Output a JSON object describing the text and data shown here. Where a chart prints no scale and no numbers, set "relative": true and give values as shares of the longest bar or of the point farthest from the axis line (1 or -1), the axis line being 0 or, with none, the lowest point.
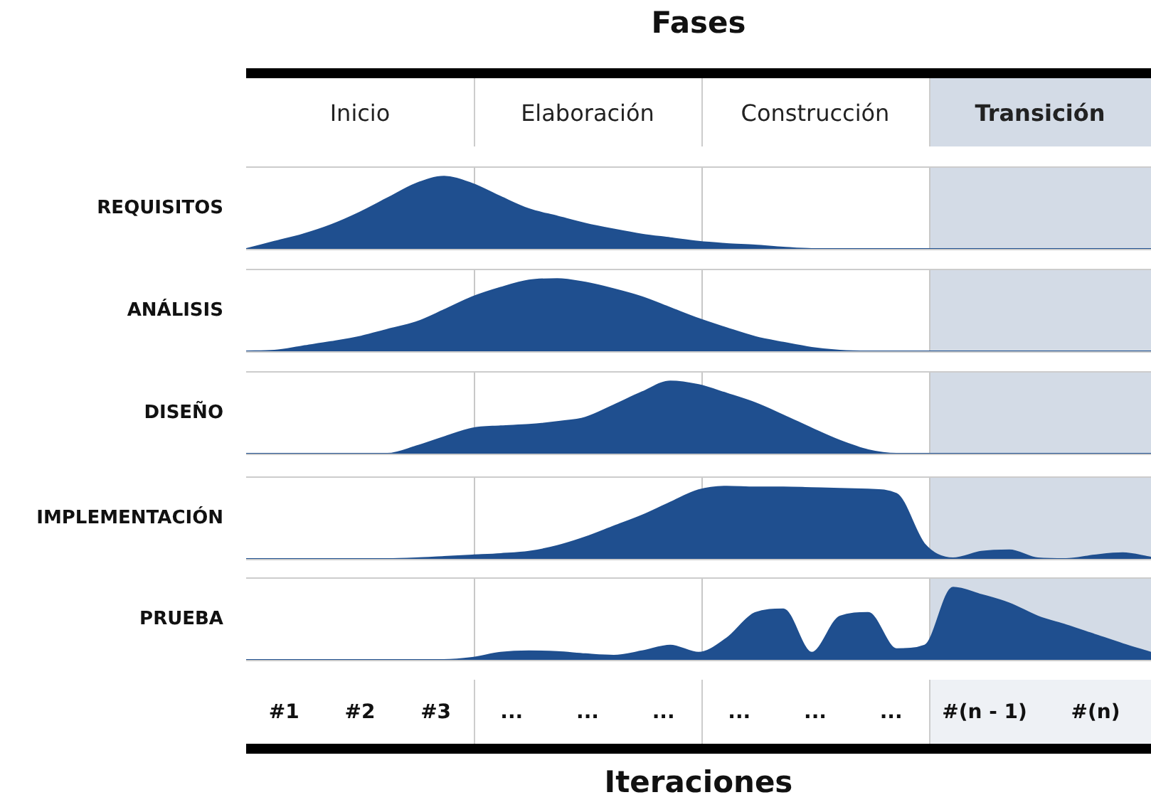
{
  "chart_data": [
    {
      "type": "other",
      "title": "Fases",
      "annotations": [
        "Inicio",
        "Elaboración",
        "Construcción",
        "Transición"
      ]
    },
    {
      "type": "area",
      "ylabel": "REQUISITOS",
      "relative": true,
      "color": "#1f4f8f",
      "tick_labels": false,
      "categories": [
        null,
        null,
        null,
        null,
        null,
        null,
        null,
        null,
        null,
        null,
        null,
        null,
        null,
        null,
        null,
        null,
        null,
        null,
        null,
        null,
        null,
        null,
        null,
        null,
        null,
        null,
        null,
        null,
        null,
        null,
        null,
        null,
        null
      ],
      "values": [
        0,
        0.1,
        0.2,
        0.33,
        0.5,
        0.7,
        0.9,
        1,
        0.9,
        0.72,
        0.55,
        0.45,
        0.35,
        0.27,
        0.2,
        0.15,
        0.1,
        0.07,
        0.05,
        0.02,
        0,
        0,
        0,
        0,
        0,
        0,
        0,
        0,
        0,
        0,
        0,
        0,
        0
      ]
    },
    {
      "type": "area",
      "ylabel": "ANÁLISIS",
      "relative": true,
      "color": "#1f4f8f",
      "tick_labels": false,
      "categories": [
        null,
        null,
        null,
        null,
        null,
        null,
        null,
        null,
        null,
        null,
        null,
        null,
        null,
        null,
        null,
        null,
        null,
        null,
        null,
        null,
        null,
        null,
        null,
        null,
        null,
        null,
        null,
        null,
        null,
        null,
        null,
        null,
        null
      ],
      "values": [
        0,
        0.01,
        0.07,
        0.13,
        0.2,
        0.3,
        0.4,
        0.57,
        0.75,
        0.88,
        0.98,
        1,
        0.95,
        0.86,
        0.75,
        0.6,
        0.45,
        0.32,
        0.2,
        0.12,
        0.05,
        0.01,
        0,
        0,
        0,
        0,
        0,
        0,
        0,
        0,
        0,
        0,
        0
      ]
    },
    {
      "type": "area",
      "ylabel": "DISEÑO",
      "relative": true,
      "color": "#1f4f8f",
      "tick_labels": false,
      "categories": [
        null,
        null,
        null,
        null,
        null,
        null,
        null,
        null,
        null,
        null,
        null,
        null,
        null,
        null,
        null,
        null,
        null,
        null,
        null,
        null,
        null,
        null,
        null,
        null,
        null,
        null,
        null,
        null,
        null,
        null,
        null,
        null,
        null
      ],
      "values": [
        0,
        0,
        0,
        0,
        0,
        0,
        0.1,
        0.23,
        0.35,
        0.38,
        0.4,
        0.44,
        0.5,
        0.67,
        0.85,
        1,
        0.95,
        0.83,
        0.7,
        0.53,
        0.35,
        0.18,
        0.05,
        0,
        0,
        0,
        0,
        0,
        0,
        0,
        0,
        0,
        0
      ]
    },
    {
      "type": "area",
      "ylabel": "IMPLEMENTACIÓN",
      "relative": true,
      "color": "#1f4f8f",
      "tick_labels": false,
      "categories": [
        null,
        null,
        null,
        null,
        null,
        null,
        null,
        null,
        null,
        null,
        null,
        null,
        null,
        null,
        null,
        null,
        null,
        null,
        null,
        null,
        null,
        null,
        null,
        null,
        null,
        null,
        null,
        null,
        null,
        null,
        null,
        null,
        null
      ],
      "values": [
        0,
        0,
        0,
        0,
        0,
        0,
        0.01,
        0.03,
        0.05,
        0.07,
        0.1,
        0.18,
        0.3,
        0.45,
        0.6,
        0.78,
        0.95,
        1,
        0.99,
        0.99,
        0.98,
        0.97,
        0.96,
        0.9,
        0.2,
        0.01,
        0.1,
        0.12,
        0.01,
        0,
        0.05,
        0.08,
        0.02
      ]
    },
    {
      "type": "area",
      "ylabel": "PRUEBA",
      "relative": true,
      "color": "#1f4f8f",
      "tick_labels": false,
      "categories": [
        null,
        null,
        null,
        null,
        null,
        null,
        null,
        null,
        null,
        null,
        null,
        null,
        null,
        null,
        null,
        null,
        null,
        null,
        null,
        null,
        null,
        null,
        null,
        null,
        null,
        null,
        null,
        null,
        null,
        null,
        null,
        null,
        null
      ],
      "values": [
        0,
        0,
        0,
        0,
        0,
        0,
        0,
        0,
        0.03,
        0.1,
        0.12,
        0.11,
        0.08,
        0.06,
        0.12,
        0.2,
        0.1,
        0.3,
        0.65,
        0.7,
        0.1,
        0.6,
        0.65,
        0.15,
        0.2,
        1,
        0.9,
        0.78,
        0.6,
        0.48,
        0.35,
        0.22,
        0.1
      ]
    },
    {
      "type": "other",
      "xlabel": "Iteraciones",
      "annotations": [
        "#1",
        "#2",
        "#3",
        "...",
        "...",
        "...",
        "...",
        "...",
        "...",
        "#(n - 1)",
        "#(n)"
      ]
    }
  ]
}
